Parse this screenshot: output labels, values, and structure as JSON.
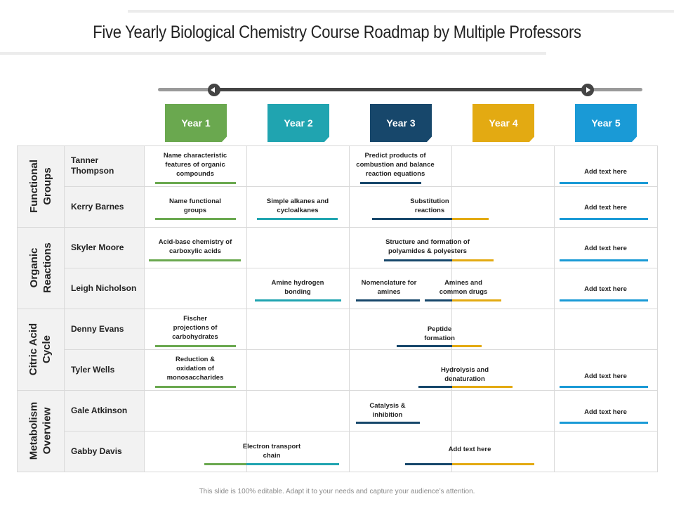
{
  "title": "Five Yearly Biological Chemistry Course Roadmap by Multiple Professors",
  "footer": "This slide is 100% editable. Adapt it to your needs and capture your audience’s attention.",
  "colors": {
    "year1": "#6aa84f",
    "year2": "#20a4b0",
    "year3": "#17476b",
    "year4": "#e3aa12",
    "year5": "#1a9ad6",
    "green_bar": "#6aa84f",
    "teal_bar": "#20a4b0",
    "navy_bar": "#17476b",
    "gold_bar": "#e3aa12",
    "blue_bar": "#1a9ad6"
  },
  "years": [
    {
      "label": "Year 1"
    },
    {
      "label": "Year 2"
    },
    {
      "label": "Year 3"
    },
    {
      "label": "Year 4"
    },
    {
      "label": "Year 5"
    }
  ],
  "categories": [
    {
      "label": "Functional\nGroups"
    },
    {
      "label": "Organic\nReactions"
    },
    {
      "label": "Citric Acid\nCycle"
    },
    {
      "label": "Metabolism\nOverview"
    }
  ],
  "professors": [
    {
      "name": "Tanner\nThompson"
    },
    {
      "name": "Kerry Barnes"
    },
    {
      "name": "Skyler Moore"
    },
    {
      "name": "Leigh Nicholson"
    },
    {
      "name": "Denny Evans"
    },
    {
      "name": "Tyler Wells"
    },
    {
      "name": "Gale Atkinson"
    },
    {
      "name": "Gabby Davis"
    }
  ],
  "tasks": [
    {
      "text": "Name characteristic\nfeatures of organic\ncompounds"
    },
    {
      "text": "Predict products of\ncombustion and balance\nreaction equations"
    },
    {
      "text": "Add text here"
    },
    {
      "text": "Name functional\ngroups"
    },
    {
      "text": "Simple alkanes and\ncycloalkanes"
    },
    {
      "text": "Substitution\nreactions"
    },
    {
      "text": "Add text here"
    },
    {
      "text": "Acid-base chemistry of\ncarboxylic acids"
    },
    {
      "text": "Structure and formation of\npolyamides & polyesters"
    },
    {
      "text": "Add text here"
    },
    {
      "text": "Amine hydrogen\nbonding"
    },
    {
      "text": "Nomenclature for\namines"
    },
    {
      "text": "Amines and\ncommon drugs"
    },
    {
      "text": "Add text here"
    },
    {
      "text": "Fischer\nprojections of\ncarbohydrates"
    },
    {
      "text": "Peptide\nformation"
    },
    {
      "text": "Reduction &\noxidation of\nmonosaccharides"
    },
    {
      "text": "Hydrolysis and\ndenaturation"
    },
    {
      "text": "Add text here"
    },
    {
      "text": "Catalysis &\ninhibition"
    },
    {
      "text": "Add text here"
    },
    {
      "text": "Electron transport\nchain"
    },
    {
      "text": "Add text here"
    }
  ]
}
